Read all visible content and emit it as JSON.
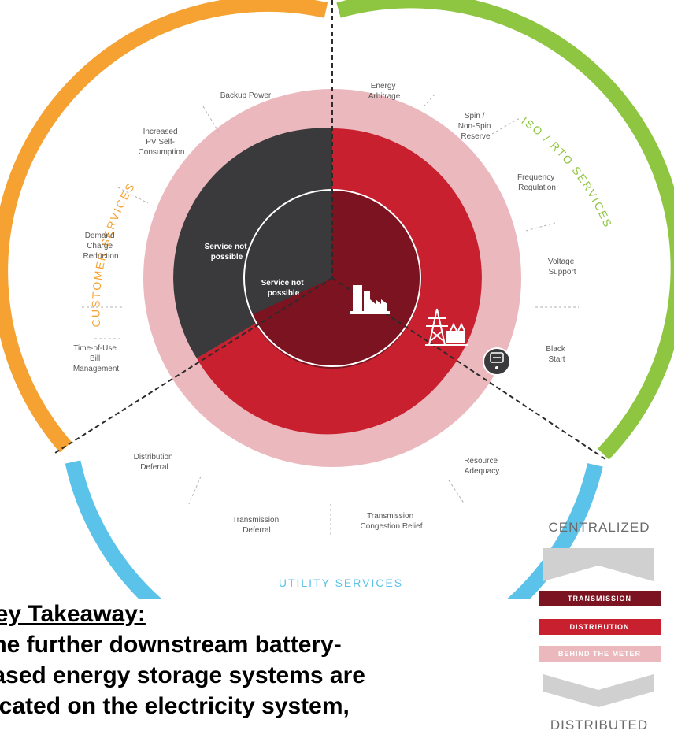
{
  "wheel": {
    "customer_services": "CUSTOMER SERVICES",
    "iso_rto_services": "ISO / RTO SERVICES",
    "utility_services": "UTILITY SERVICES",
    "services": {
      "backup_power": "Backup Power",
      "pv_self_consumption": [
        "Increased",
        "PV Self-",
        "Consumption"
      ],
      "demand_charge_reduction": [
        "Demand",
        "Charge",
        "Reduction"
      ],
      "time_of_use": [
        "Time-of-Use",
        "Bill",
        "Management"
      ],
      "energy_arbitrage": [
        "Energy",
        "Arbitrage"
      ],
      "spin_reserve": [
        "Spin /",
        "Non-Spin",
        "Reserve"
      ],
      "frequency_regulation": [
        "Frequency",
        "Regulation"
      ],
      "voltage_support": [
        "Voltage",
        "Support"
      ],
      "black_start": [
        "Black",
        "Start"
      ],
      "resource_adequacy": [
        "Resource",
        "Adequacy"
      ],
      "transmission_congestion_relief": [
        "Transmission",
        "Congestion Relief"
      ],
      "transmission_deferral": [
        "Transmission",
        "Deferral"
      ],
      "distribution_deferral": [
        "Distribution",
        "Deferral"
      ]
    },
    "service_not_possible_outer": [
      "Service not",
      "possible"
    ],
    "service_not_possible_inner": [
      "Service not",
      "possible"
    ],
    "colors": {
      "customer": "#f5a233",
      "iso": "#8fc641",
      "utility": "#5bc2ea",
      "behind_meter": "#eab8bd",
      "distribution": "#c8202f",
      "transmission": "#7b1420",
      "not_possible": "#3a3a3c"
    },
    "icons": [
      "power-plant-icon",
      "transmission-tower-icon",
      "meter-icon"
    ]
  },
  "legend": {
    "top": "CENTRALIZED",
    "transmission": "TRANSMISSION",
    "distribution": "DISTRIBUTION",
    "behind_the_meter": "BEHIND THE METER",
    "bottom": "DISTRIBUTED"
  },
  "takeaway": {
    "heading": "Key Takeaway:",
    "line1": "The further downstream battery-",
    "line2": "based energy storage systems are",
    "line3": "located on the electricity system,"
  }
}
